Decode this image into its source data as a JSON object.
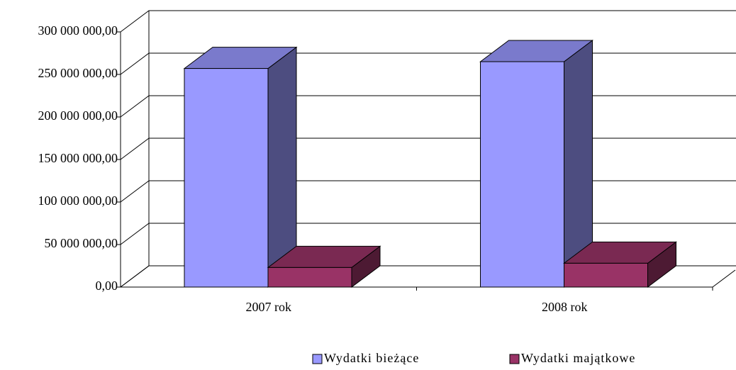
{
  "chart_data": {
    "type": "bar3d",
    "categories": [
      "2007 rok",
      "2008 rok"
    ],
    "series": [
      {
        "name": "Wydatki bieżące",
        "color": "#9999ff",
        "values": [
          257000000,
          265000000
        ]
      },
      {
        "name": "Wydatki majątkowe",
        "color": "#993366",
        "values": [
          23000000,
          28000000
        ]
      }
    ],
    "ylim": [
      0,
      300000000
    ],
    "yticks": [
      {
        "value": 0,
        "label": "0,00"
      },
      {
        "value": 50000000,
        "label": "50 000 000,00"
      },
      {
        "value": 100000000,
        "label": "100 000 000,00"
      },
      {
        "value": 150000000,
        "label": "150 000 000,00"
      },
      {
        "value": 200000000,
        "label": "200 000 000,00"
      },
      {
        "value": 250000000,
        "label": "250 000 000,00"
      },
      {
        "value": 300000000,
        "label": "300 000 000,00"
      }
    ],
    "grid": true,
    "legend": "bottom"
  }
}
